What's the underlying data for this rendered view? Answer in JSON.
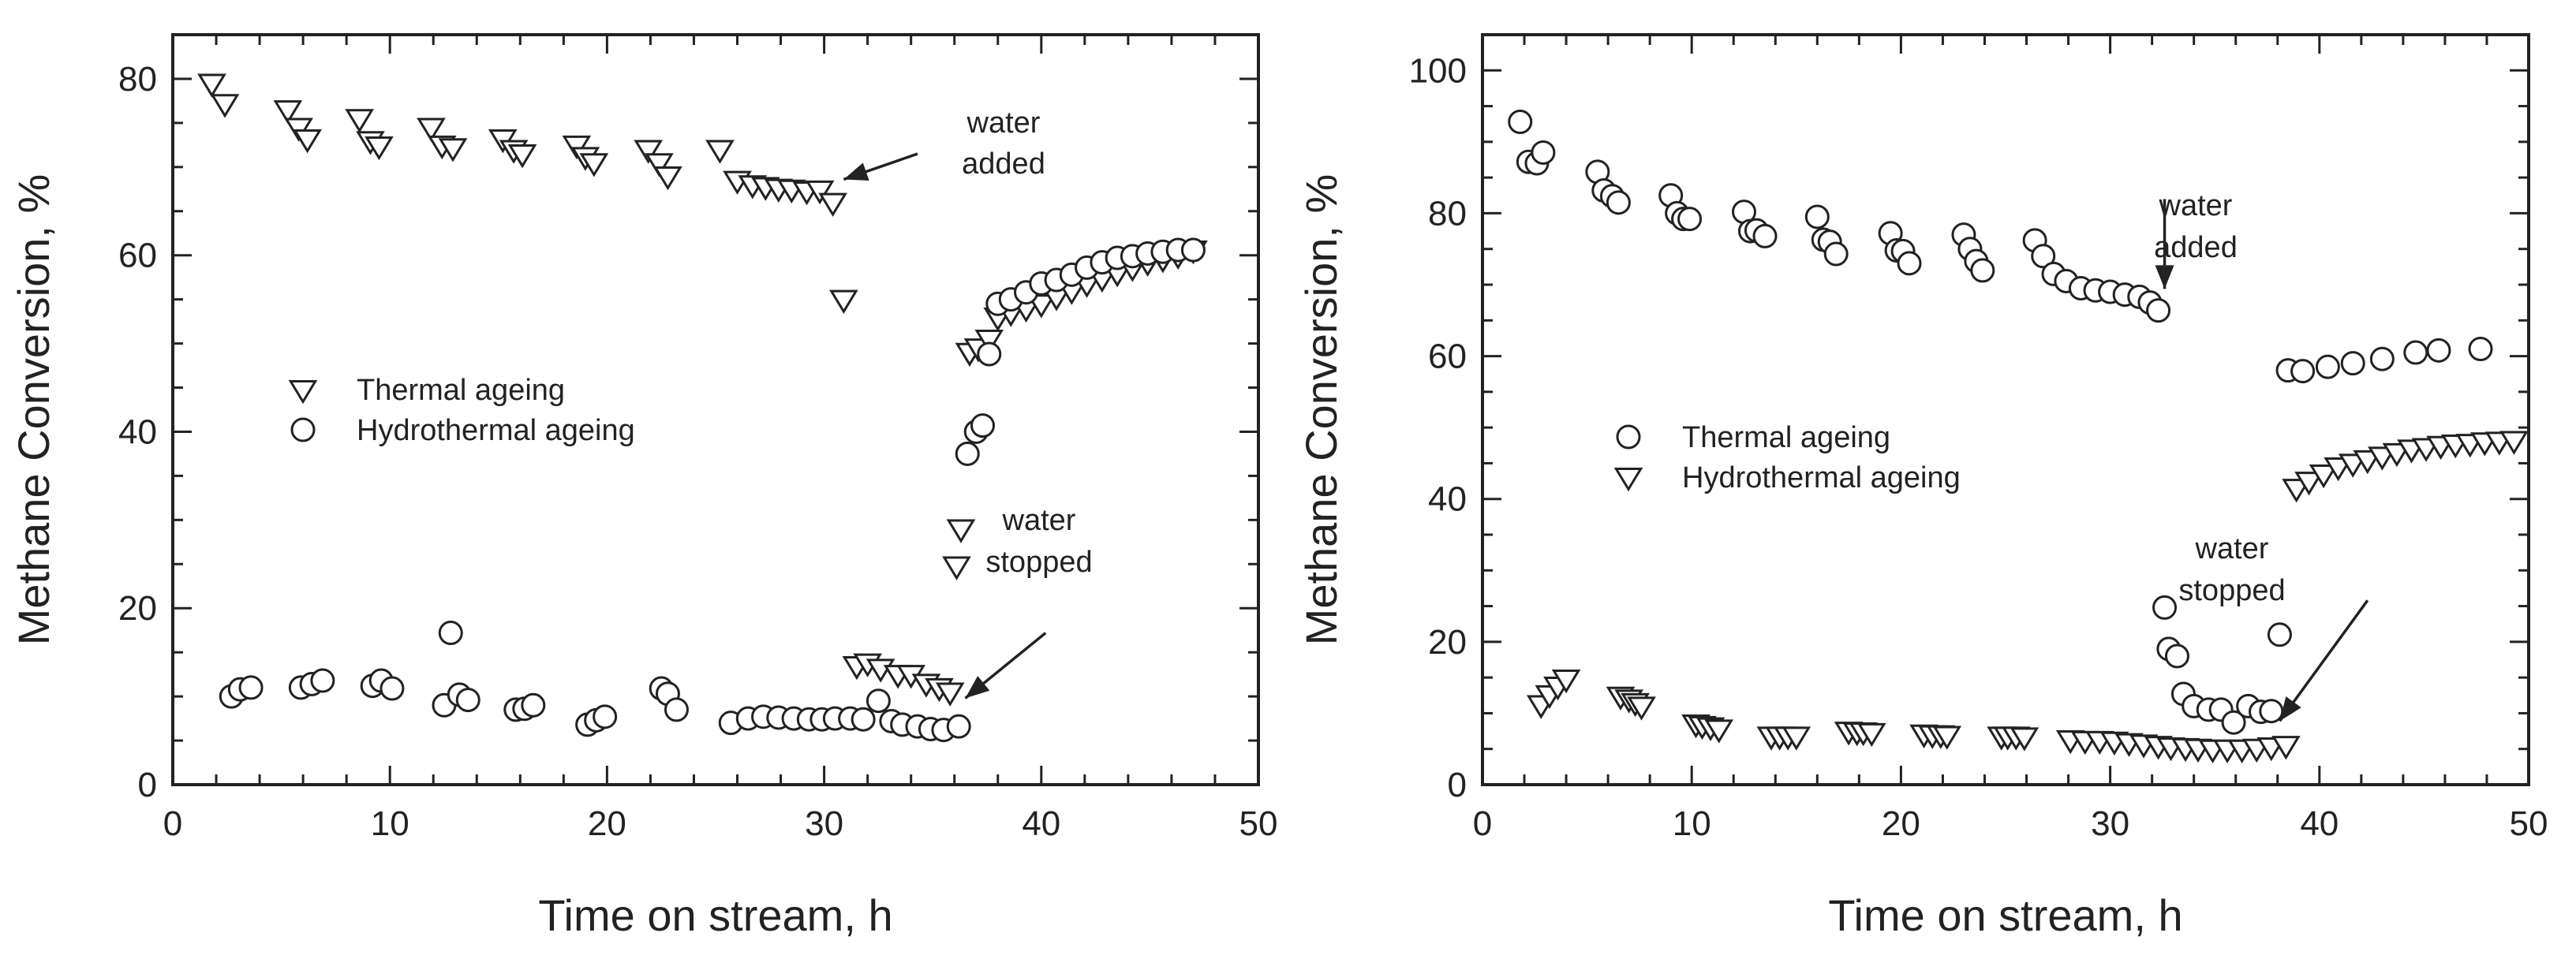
{
  "chart_data": [
    {
      "type": "scatter",
      "xlabel": "Time on stream, h",
      "ylabel": "Methane Conversion, %",
      "xlim": [
        0,
        50
      ],
      "ylim": [
        0,
        85
      ],
      "xticks": [
        0,
        10,
        20,
        30,
        40,
        50
      ],
      "yticks": [
        0,
        20,
        40,
        60,
        80
      ],
      "xtick_labels": [
        "0",
        "10",
        "20",
        "30",
        "40",
        "50"
      ],
      "ytick_labels": [
        "0",
        "20",
        "40",
        "60",
        "80"
      ],
      "legend_position": "center-left",
      "series": [
        {
          "name": "Thermal ageing",
          "marker": "triangle-down",
          "points": [
            [
              1.8,
              79.5
            ],
            [
              2.4,
              77.2
            ],
            [
              5.3,
              76.5
            ],
            [
              5.8,
              74.5
            ],
            [
              6.2,
              73.2
            ],
            [
              8.6,
              75.5
            ],
            [
              9.1,
              73.0
            ],
            [
              9.5,
              72.4
            ],
            [
              11.9,
              74.5
            ],
            [
              12.4,
              72.5
            ],
            [
              12.9,
              72.2
            ],
            [
              15.2,
              73.2
            ],
            [
              15.7,
              72.0
            ],
            [
              16.1,
              71.5
            ],
            [
              18.6,
              72.5
            ],
            [
              19.0,
              71.2
            ],
            [
              19.4,
              70.5
            ],
            [
              21.9,
              72.0
            ],
            [
              22.4,
              70.5
            ],
            [
              22.8,
              69.0
            ],
            [
              25.2,
              72.0
            ],
            [
              26.0,
              68.5
            ],
            [
              26.7,
              68.0
            ],
            [
              27.3,
              67.8
            ],
            [
              27.9,
              67.6
            ],
            [
              28.5,
              67.5
            ],
            [
              29.2,
              67.3
            ],
            [
              29.8,
              67.4
            ],
            [
              30.4,
              66.0
            ],
            [
              30.9,
              55.0
            ],
            [
              31.5,
              13.5
            ],
            [
              32.0,
              13.8
            ],
            [
              32.6,
              13.2
            ],
            [
              33.4,
              12.5
            ],
            [
              34.0,
              12.5
            ],
            [
              34.7,
              11.5
            ],
            [
              35.3,
              11.0
            ],
            [
              35.8,
              10.5
            ],
            [
              36.1,
              24.8
            ],
            [
              36.3,
              29.0
            ],
            [
              36.7,
              49.0
            ],
            [
              37.1,
              49.5
            ],
            [
              37.6,
              50.5
            ],
            [
              38.0,
              53.0
            ],
            [
              38.6,
              53.5
            ],
            [
              39.3,
              54.0
            ],
            [
              40.0,
              54.5
            ],
            [
              40.7,
              55.3
            ],
            [
              41.4,
              56.0
            ],
            [
              42.1,
              56.8
            ],
            [
              42.8,
              57.4
            ],
            [
              43.5,
              58.0
            ],
            [
              44.2,
              58.6
            ],
            [
              44.9,
              59.2
            ],
            [
              45.6,
              59.6
            ],
            [
              46.3,
              60.0
            ],
            [
              47.0,
              60.6
            ]
          ]
        },
        {
          "name": "Hydrothermal ageing",
          "marker": "circle",
          "points": [
            [
              2.7,
              10.0
            ],
            [
              3.1,
              10.8
            ],
            [
              3.6,
              11.0
            ],
            [
              5.9,
              11.0
            ],
            [
              6.4,
              11.4
            ],
            [
              6.9,
              11.8
            ],
            [
              9.2,
              11.2
            ],
            [
              9.6,
              11.8
            ],
            [
              10.1,
              10.9
            ],
            [
              12.5,
              9.0
            ],
            [
              12.8,
              17.2
            ],
            [
              13.2,
              10.2
            ],
            [
              13.6,
              9.6
            ],
            [
              15.8,
              8.5
            ],
            [
              16.2,
              8.6
            ],
            [
              16.6,
              9.0
            ],
            [
              19.1,
              6.8
            ],
            [
              19.5,
              7.3
            ],
            [
              19.9,
              7.7
            ],
            [
              22.5,
              10.9
            ],
            [
              22.8,
              10.3
            ],
            [
              23.2,
              8.5
            ],
            [
              25.7,
              7.0
            ],
            [
              26.5,
              7.5
            ],
            [
              27.2,
              7.7
            ],
            [
              27.9,
              7.6
            ],
            [
              28.6,
              7.5
            ],
            [
              29.3,
              7.4
            ],
            [
              29.9,
              7.4
            ],
            [
              30.5,
              7.5
            ],
            [
              31.2,
              7.5
            ],
            [
              31.8,
              7.4
            ],
            [
              32.5,
              9.5
            ],
            [
              33.1,
              7.2
            ],
            [
              33.6,
              6.8
            ],
            [
              34.3,
              6.6
            ],
            [
              34.9,
              6.3
            ],
            [
              35.5,
              6.2
            ],
            [
              36.2,
              6.6
            ],
            [
              36.6,
              37.5
            ],
            [
              37.0,
              40.0
            ],
            [
              37.3,
              40.7
            ],
            [
              37.6,
              48.8
            ],
            [
              38.0,
              54.5
            ],
            [
              38.6,
              55.0
            ],
            [
              39.3,
              55.8
            ],
            [
              40.0,
              56.8
            ],
            [
              40.7,
              57.2
            ],
            [
              41.4,
              57.8
            ],
            [
              42.1,
              58.6
            ],
            [
              42.8,
              59.2
            ],
            [
              43.5,
              59.7
            ],
            [
              44.2,
              59.9
            ],
            [
              44.9,
              60.2
            ],
            [
              45.6,
              60.4
            ],
            [
              46.3,
              60.6
            ],
            [
              47.0,
              60.6
            ]
          ]
        }
      ],
      "annotations": [
        {
          "lines": [
            "water",
            "added"
          ],
          "arrow_from": [
            34.3,
            71.5
          ],
          "arrow_to": [
            30.9,
            68.6
          ]
        },
        {
          "lines": [
            "water",
            "stopped"
          ],
          "arrow_from": [
            40.2,
            17.2
          ],
          "arrow_to": [
            36.5,
            9.8
          ]
        }
      ]
    },
    {
      "type": "scatter",
      "xlabel": "Time on stream, h",
      "ylabel": "Methane Conversion, %",
      "xlim": [
        0,
        50
      ],
      "ylim": [
        0,
        105
      ],
      "xticks": [
        0,
        10,
        20,
        30,
        40,
        50
      ],
      "yticks": [
        0,
        20,
        40,
        60,
        80,
        100
      ],
      "xtick_labels": [
        "0",
        "10",
        "20",
        "30",
        "40",
        "50"
      ],
      "ytick_labels": [
        "0",
        "20",
        "40",
        "60",
        "80",
        "100"
      ],
      "legend_position": "center-left",
      "series": [
        {
          "name": "Thermal ageing",
          "marker": "circle",
          "points": [
            [
              1.8,
              92.8
            ],
            [
              2.2,
              87.2
            ],
            [
              2.6,
              87.0
            ],
            [
              2.9,
              88.5
            ],
            [
              5.5,
              85.8
            ],
            [
              5.8,
              83.2
            ],
            [
              6.2,
              82.4
            ],
            [
              6.5,
              81.5
            ],
            [
              9.0,
              82.5
            ],
            [
              9.3,
              80.0
            ],
            [
              9.6,
              79.2
            ],
            [
              9.9,
              79.2
            ],
            [
              12.5,
              80.2
            ],
            [
              12.8,
              77.5
            ],
            [
              13.1,
              77.6
            ],
            [
              13.5,
              76.8
            ],
            [
              16.0,
              79.5
            ],
            [
              16.3,
              76.3
            ],
            [
              16.6,
              76.0
            ],
            [
              16.9,
              74.3
            ],
            [
              19.5,
              77.2
            ],
            [
              19.8,
              74.8
            ],
            [
              20.1,
              74.7
            ],
            [
              20.4,
              73.0
            ],
            [
              23.0,
              77.0
            ],
            [
              23.3,
              75.0
            ],
            [
              23.6,
              73.3
            ],
            [
              23.9,
              72.0
            ],
            [
              26.4,
              76.2
            ],
            [
              26.8,
              74.0
            ],
            [
              27.3,
              71.5
            ],
            [
              27.9,
              70.5
            ],
            [
              28.6,
              69.5
            ],
            [
              29.3,
              69.2
            ],
            [
              30.0,
              69.0
            ],
            [
              30.7,
              68.6
            ],
            [
              31.4,
              68.3
            ],
            [
              31.9,
              67.5
            ],
            [
              32.3,
              66.4
            ],
            [
              32.6,
              24.8
            ],
            [
              32.8,
              19.0
            ],
            [
              33.2,
              18.0
            ],
            [
              33.5,
              12.7
            ],
            [
              34.0,
              11.0
            ],
            [
              34.7,
              10.5
            ],
            [
              35.3,
              10.5
            ],
            [
              35.9,
              8.7
            ],
            [
              36.6,
              11.0
            ],
            [
              37.2,
              10.2
            ],
            [
              37.7,
              10.3
            ],
            [
              38.1,
              21.0
            ],
            [
              38.5,
              58.0
            ],
            [
              39.2,
              57.9
            ],
            [
              40.4,
              58.5
            ],
            [
              41.6,
              59.0
            ],
            [
              43.0,
              59.6
            ],
            [
              44.6,
              60.5
            ],
            [
              45.7,
              60.8
            ],
            [
              47.7,
              61.0
            ]
          ]
        },
        {
          "name": "Hydrothermal ageing",
          "marker": "triangle-down",
          "points": [
            [
              2.8,
              11.2
            ],
            [
              3.2,
              12.6
            ],
            [
              3.6,
              13.8
            ],
            [
              4.0,
              14.8
            ],
            [
              6.6,
              12.4
            ],
            [
              7.0,
              12.0
            ],
            [
              7.3,
              11.5
            ],
            [
              7.6,
              11.0
            ],
            [
              10.2,
              8.5
            ],
            [
              10.5,
              8.3
            ],
            [
              10.9,
              8.1
            ],
            [
              11.3,
              7.8
            ],
            [
              13.8,
              6.8
            ],
            [
              14.2,
              6.8
            ],
            [
              14.6,
              6.8
            ],
            [
              15.0,
              6.8
            ],
            [
              17.5,
              7.5
            ],
            [
              17.9,
              7.4
            ],
            [
              18.2,
              7.4
            ],
            [
              18.6,
              7.3
            ],
            [
              21.1,
              7.1
            ],
            [
              21.5,
              7.0
            ],
            [
              21.9,
              7.0
            ],
            [
              22.2,
              6.9
            ],
            [
              24.8,
              6.8
            ],
            [
              25.1,
              6.8
            ],
            [
              25.5,
              6.8
            ],
            [
              25.9,
              6.7
            ],
            [
              28.1,
              6.3
            ],
            [
              28.8,
              6.2
            ],
            [
              29.5,
              6.2
            ],
            [
              30.2,
              6.1
            ],
            [
              30.9,
              5.9
            ],
            [
              31.6,
              5.7
            ],
            [
              32.3,
              5.5
            ],
            [
              32.9,
              5.3
            ],
            [
              33.6,
              5.2
            ],
            [
              34.2,
              5.1
            ],
            [
              34.9,
              5.0
            ],
            [
              35.6,
              5.0
            ],
            [
              36.3,
              5.0
            ],
            [
              37.0,
              5.1
            ],
            [
              37.7,
              5.3
            ],
            [
              38.4,
              5.5
            ],
            [
              38.9,
              41.5
            ],
            [
              39.5,
              42.5
            ],
            [
              40.2,
              43.5
            ],
            [
              40.9,
              44.5
            ],
            [
              41.6,
              45.0
            ],
            [
              42.3,
              45.5
            ],
            [
              43.0,
              46.0
            ],
            [
              43.7,
              46.5
            ],
            [
              44.4,
              47.0
            ],
            [
              45.1,
              47.2
            ],
            [
              45.8,
              47.5
            ],
            [
              46.5,
              47.7
            ],
            [
              47.2,
              47.8
            ],
            [
              47.9,
              48.0
            ],
            [
              48.6,
              48.1
            ],
            [
              49.3,
              48.2
            ]
          ]
        }
      ],
      "annotations": [
        {
          "lines": [
            "water",
            "added"
          ],
          "arrow_from": [
            32.6,
            82.0
          ],
          "arrow_to": [
            32.6,
            69.4
          ]
        },
        {
          "lines": [
            "water",
            "stopped"
          ],
          "arrow_from": [
            42.3,
            25.8
          ],
          "arrow_to": [
            38.1,
            8.9
          ]
        }
      ]
    }
  ]
}
